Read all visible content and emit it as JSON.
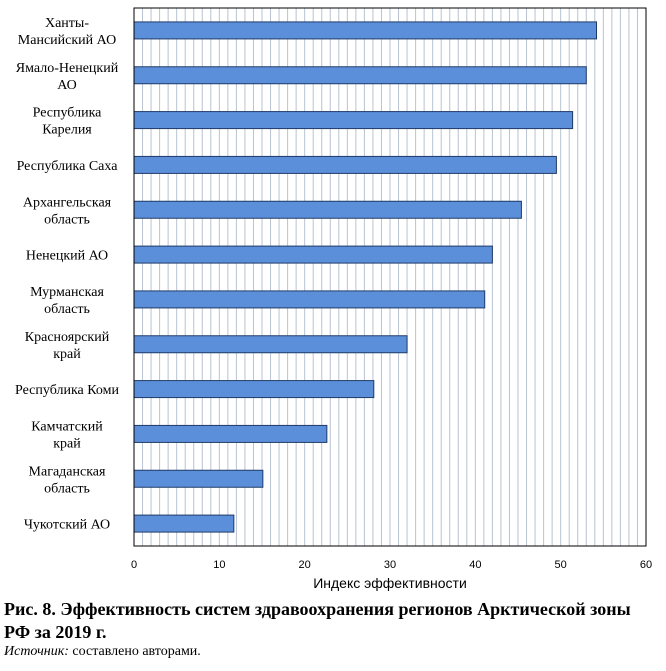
{
  "chart_data": {
    "type": "bar",
    "orientation": "horizontal",
    "categories": [
      [
        "Ханты-",
        "Мансийский АО"
      ],
      [
        "Ямало-Ненецкий",
        "АО"
      ],
      [
        "Республика",
        "Карелия"
      ],
      [
        "Республика Саха"
      ],
      [
        "Архангельская",
        "область"
      ],
      [
        "Ненецкий АО"
      ],
      [
        "Мурманская",
        "область"
      ],
      [
        "Красноярский",
        "край"
      ],
      [
        "Республика Коми"
      ],
      [
        "Камчатский",
        "край"
      ],
      [
        "Магаданская",
        "область"
      ],
      [
        "Чукотский АО"
      ]
    ],
    "values": [
      54.2,
      53.0,
      51.4,
      49.5,
      45.4,
      42.0,
      41.1,
      32.0,
      28.1,
      22.6,
      15.1,
      11.7
    ],
    "xlabel": "Индекс эффективности",
    "ylabel": "",
    "xlim": [
      0,
      60
    ],
    "xticks": [
      0,
      10,
      20,
      30,
      40,
      50,
      60
    ],
    "grid": "vertical minor lines",
    "bar_color": "#5b8fd9",
    "bar_edge_color": "#1f3a68",
    "grid_color": "#b9c3d3"
  },
  "caption": "Рис. 8. Эффективность систем здравоохранения регионов Арктической зоны РФ за 2019 г.",
  "source": {
    "label": "Источник:",
    "text": " составлено авторами."
  }
}
